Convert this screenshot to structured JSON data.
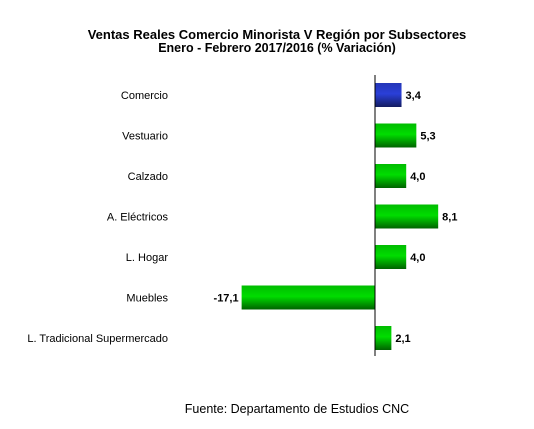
{
  "chart_data": {
    "type": "bar",
    "orientation": "horizontal",
    "title": "Ventas Reales Comercio Minorista V Región por Subsectores",
    "subtitle": "Enero - Febrero  2017/2016 (% Variación)",
    "categories": [
      "Comercio",
      "Vestuario",
      "Calzado",
      "A. Eléctricos",
      "L. Hogar",
      "Muebles",
      "L. Tradicional Supermercado"
    ],
    "values": [
      3.4,
      5.3,
      4.0,
      8.1,
      4.0,
      -17.1,
      2.1
    ],
    "value_labels": [
      "3,4",
      "5,3",
      "4,0",
      "8,1",
      "4,0",
      "-17,1",
      "2,1"
    ],
    "bar_colors": [
      "#2a3fd8",
      "#00dd00",
      "#00dd00",
      "#00dd00",
      "#00dd00",
      "#00dd00",
      "#00dd00"
    ],
    "xlabel": "",
    "ylabel": "",
    "legend": "none",
    "grid": false
  },
  "source": "Fuente: Departamento de Estudios CNC"
}
